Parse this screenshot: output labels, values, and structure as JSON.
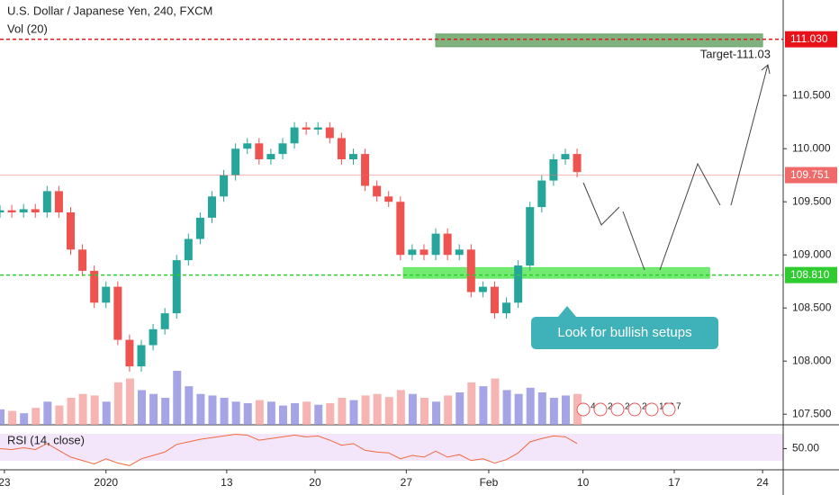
{
  "chart_data": {
    "type": "candlestick",
    "title": "U.S. Dollar / Japanese Yen, 240, FXCM",
    "volume_label": "Vol (20)",
    "x": [
      0,
      4,
      8,
      12,
      16,
      20,
      24,
      28,
      32,
      36,
      40,
      44,
      48,
      52,
      56,
      60,
      64,
      68,
      72,
      76,
      80,
      84,
      88,
      92,
      96,
      100,
      104,
      108,
      112,
      116,
      120,
      124,
      128,
      132,
      136,
      140,
      144,
      148,
      152,
      156,
      160,
      164,
      168,
      172,
      176,
      180,
      184,
      188,
      192,
      196
    ],
    "open": [
      109.4,
      109.42,
      109.4,
      109.43,
      109.4,
      109.6,
      109.4,
      109.05,
      108.85,
      108.55,
      108.7,
      108.2,
      107.95,
      108.15,
      108.3,
      108.45,
      108.95,
      109.15,
      109.35,
      109.55,
      109.75,
      110.0,
      110.05,
      109.9,
      109.95,
      110.05,
      110.2,
      110.18,
      110.2,
      110.1,
      109.9,
      109.95,
      109.65,
      109.55,
      109.5,
      109.0,
      109.05,
      109.0,
      109.2,
      109.0,
      109.05,
      108.65,
      108.7,
      108.45,
      108.55,
      108.9,
      109.45,
      109.7,
      109.9,
      109.95
    ],
    "high": [
      109.47,
      109.47,
      109.48,
      109.48,
      109.65,
      109.65,
      109.45,
      109.1,
      108.9,
      108.75,
      108.75,
      108.25,
      108.2,
      108.35,
      108.5,
      109.0,
      109.2,
      109.4,
      109.6,
      109.8,
      110.05,
      110.1,
      110.1,
      110.0,
      110.1,
      110.25,
      110.25,
      110.25,
      110.25,
      110.15,
      110.0,
      110.0,
      109.7,
      109.6,
      109.55,
      109.1,
      109.1,
      109.25,
      109.25,
      109.1,
      109.1,
      108.75,
      108.75,
      108.6,
      108.95,
      109.5,
      109.75,
      109.95,
      110.0,
      110.0
    ],
    "low": [
      109.35,
      109.35,
      109.35,
      109.35,
      109.35,
      109.35,
      109.0,
      108.8,
      108.5,
      108.5,
      108.15,
      107.9,
      107.9,
      108.1,
      108.25,
      108.4,
      108.9,
      109.1,
      109.3,
      109.5,
      109.7,
      109.95,
      109.85,
      109.85,
      109.9,
      110.0,
      110.13,
      110.13,
      110.05,
      109.85,
      109.85,
      109.6,
      109.5,
      109.45,
      108.95,
      108.95,
      108.95,
      108.95,
      108.95,
      108.95,
      108.6,
      108.6,
      108.4,
      108.4,
      108.5,
      108.85,
      109.4,
      109.65,
      109.85,
      109.73
    ],
    "close": [
      109.42,
      109.4,
      109.43,
      109.4,
      109.6,
      109.4,
      109.05,
      108.85,
      108.55,
      108.7,
      108.2,
      107.95,
      108.15,
      108.3,
      108.45,
      108.95,
      109.15,
      109.35,
      109.55,
      109.75,
      110.0,
      110.05,
      109.9,
      109.95,
      110.05,
      110.2,
      110.18,
      110.2,
      110.1,
      109.9,
      109.95,
      109.65,
      109.55,
      109.5,
      109.0,
      109.05,
      109.0,
      109.2,
      109.0,
      109.05,
      108.65,
      108.7,
      108.45,
      108.55,
      108.9,
      109.45,
      109.7,
      109.9,
      109.95,
      109.78
    ],
    "volume": [
      20,
      18,
      15,
      22,
      30,
      25,
      35,
      40,
      38,
      30,
      55,
      60,
      45,
      40,
      35,
      70,
      50,
      40,
      38,
      35,
      30,
      28,
      32,
      30,
      25,
      28,
      30,
      26,
      28,
      35,
      32,
      38,
      40,
      36,
      45,
      40,
      35,
      30,
      38,
      42,
      55,
      50,
      60,
      45,
      40,
      48,
      42,
      35,
      38,
      40
    ],
    "up_color": "#26a69a",
    "down_color": "#ef5350",
    "xlim": [
      0,
      266
    ],
    "ylim": [
      107.4,
      111.4
    ],
    "xticks": [
      {
        "value": 1.5,
        "label": "23"
      },
      {
        "value": 36,
        "label": "2020"
      },
      {
        "value": 77,
        "label": "13"
      },
      {
        "value": 107,
        "label": "20"
      },
      {
        "value": 138,
        "label": "27"
      },
      {
        "value": 166,
        "label": "Feb"
      },
      {
        "value": 198,
        "label": "10"
      },
      {
        "value": 229,
        "label": "17"
      },
      {
        "value": 259,
        "label": "24"
      }
    ],
    "yticks": [
      {
        "value": 110.5,
        "label": "110.500"
      },
      {
        "value": 110,
        "label": "110.000"
      },
      {
        "value": 109.5,
        "label": "109.500"
      },
      {
        "value": 109,
        "label": "109.000"
      },
      {
        "value": 108.5,
        "label": "108.500"
      },
      {
        "value": 108,
        "label": "108.000"
      },
      {
        "value": 107.5,
        "label": "107.500"
      }
    ],
    "levels": [
      {
        "value": 111.03,
        "label": "111.030",
        "color": "#e8121b",
        "style": "dashed"
      },
      {
        "value": 109.751,
        "color": "#f06a6a",
        "style": "solid"
      },
      {
        "value": 108.81,
        "label": "108.810",
        "color": "#2ecc2e",
        "style": "dashed"
      }
    ],
    "zones": [
      {
        "x": [
          148,
          259
        ],
        "y": [
          110.96,
          111.08
        ],
        "color": "#6aa56a"
      },
      {
        "x": [
          137,
          241
        ],
        "y": [
          108.78,
          108.88
        ],
        "color": "#5ae85a"
      }
    ],
    "annotations": [
      "Target-111.03",
      "Look for bullish setups"
    ],
    "event_badges": [
      "4",
      "2",
      "2",
      "2",
      "103",
      "7"
    ],
    "rsi": {
      "label": "RSI (14, close)",
      "ylim": [
        25,
        75
      ],
      "yticks": [
        {
          "value": 50,
          "label": "50.00"
        }
      ],
      "color": "#f0693c",
      "values": [
        50,
        49,
        51,
        49,
        56,
        48,
        40,
        36,
        32,
        38,
        33,
        30,
        38,
        42,
        46,
        55,
        58,
        61,
        63,
        65,
        67,
        66,
        60,
        62,
        64,
        66,
        64,
        65,
        60,
        54,
        56,
        48,
        46,
        45,
        38,
        42,
        40,
        47,
        40,
        43,
        36,
        38,
        33,
        37,
        45,
        58,
        62,
        65,
        64,
        56
      ]
    }
  }
}
